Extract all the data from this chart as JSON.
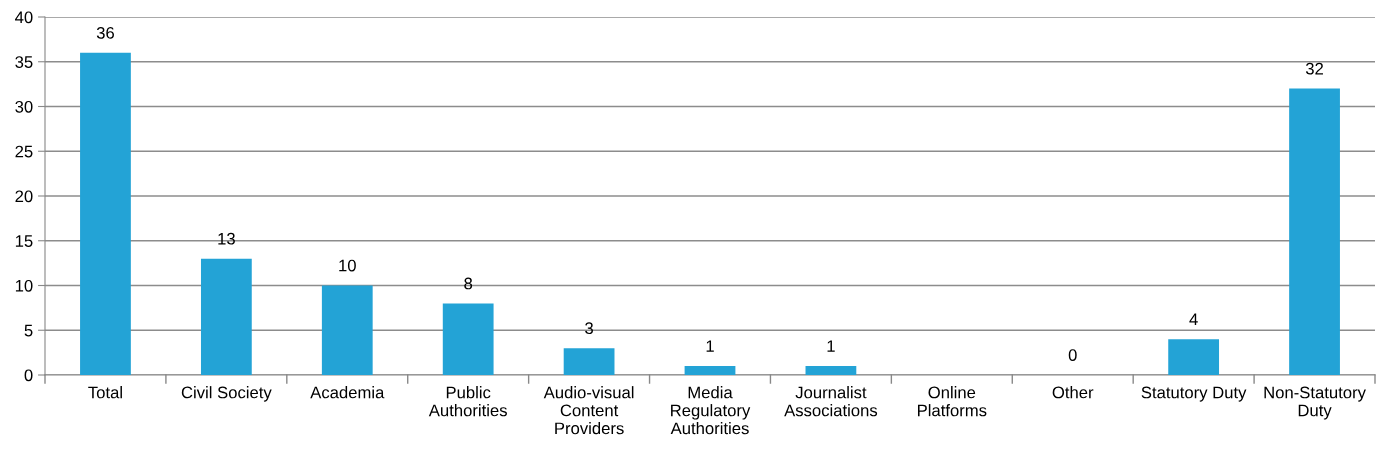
{
  "chart_data": {
    "type": "bar",
    "categories": [
      "Total",
      "Civil Society",
      "Academia",
      "Public\nAuthorities",
      "Audio-visual\nContent\nProviders",
      "Media\nRegulatory\nAuthorities",
      "Journalist\nAssociations",
      "Online\nPlatforms",
      "Other",
      "Statutory Duty",
      "Non-Statutory\nDuty"
    ],
    "values": [
      36,
      13,
      10,
      8,
      3,
      1,
      1,
      0,
      0,
      4,
      32
    ],
    "value_labels": [
      "36",
      "13",
      "10",
      "8",
      "3",
      "1",
      "1",
      null,
      "0",
      "4",
      "32"
    ],
    "color": "#23a3d6",
    "ylim": [
      0,
      40
    ],
    "yticks": [
      0,
      5,
      10,
      15,
      20,
      25,
      30,
      35,
      40
    ],
    "grid": "y",
    "legend": false
  }
}
